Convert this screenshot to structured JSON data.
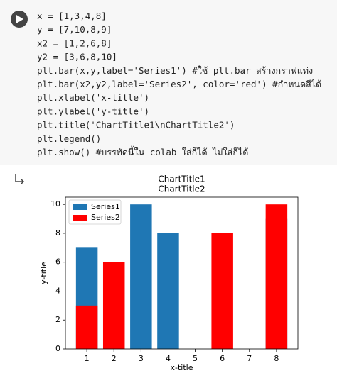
{
  "code": {
    "lines": [
      "x = [1,3,4,8]",
      "y = [7,10,8,9]",
      "x2 = [1,2,6,8]",
      "y2 = [3,6,8,10]",
      "plt.bar(x,y,label='Series1') #ใช้ plt.bar สร้างกราฟแท่ง",
      "plt.bar(x2,y2,label='Series2', color='red') #กำหนดสีได้",
      "plt.xlabel('x-title')",
      "plt.ylabel('y-title')",
      "plt.title('ChartTitle1\\nChartTitle2')",
      "plt.legend()",
      "plt.show()  #บรรทัดนี้ใน colab ใส่ก็ได้ ไม่ใส่ก็ได้"
    ]
  },
  "chart_data": {
    "type": "bar",
    "title": [
      "ChartTitle1",
      "ChartTitle2"
    ],
    "xlabel": "x-title",
    "ylabel": "y-title",
    "series": [
      {
        "name": "Series1",
        "color": "#1f77b4",
        "x": [
          1,
          3,
          4,
          8
        ],
        "values": [
          7,
          10,
          8,
          9
        ]
      },
      {
        "name": "Series2",
        "color": "red",
        "x": [
          1,
          2,
          6,
          8
        ],
        "values": [
          3,
          6,
          8,
          10
        ]
      }
    ],
    "bar_width": 0.8,
    "xlim": [
      0.21,
      8.79
    ],
    "xticks": [
      1,
      2,
      3,
      4,
      5,
      6,
      7,
      8
    ],
    "ylim": [
      0,
      10.5
    ],
    "yticks": [
      0,
      2,
      4,
      6,
      8,
      10
    ],
    "legend": "upper left"
  }
}
